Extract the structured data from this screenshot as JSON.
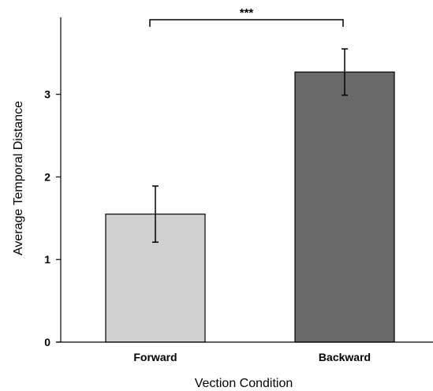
{
  "chart_data": {
    "type": "bar",
    "categories": [
      "Forward",
      "Backward"
    ],
    "values": [
      1.55,
      3.27
    ],
    "error": [
      0.34,
      0.28
    ],
    "colors": [
      "#d0d0d0",
      "#696969"
    ],
    "xlabel": "Vection Condition",
    "ylabel": "Average Temporal Distance",
    "ylim": [
      0,
      3.97
    ],
    "yticks": [
      "0",
      "1",
      "2",
      "3"
    ],
    "grid": false,
    "annotation": "***"
  }
}
